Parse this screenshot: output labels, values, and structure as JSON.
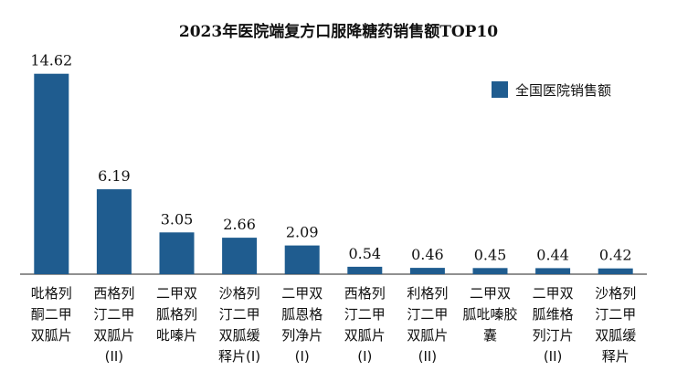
{
  "colors": {
    "bar": "#1f5c8f",
    "axis": "#222222"
  },
  "chart_data": {
    "type": "bar",
    "title": "2023年医院端复方口服降糖药销售额TOP10",
    "xlabel": "",
    "ylabel": "",
    "legend": {
      "position": "top-right"
    },
    "grid": false,
    "ylim": [
      0,
      16
    ],
    "categories": [
      [
        "吡格列",
        "酮二甲",
        "双胍片"
      ],
      [
        "西格列",
        "汀二甲",
        "双胍片",
        "(II)"
      ],
      [
        "二甲双",
        "胍格列",
        "吡嗪片"
      ],
      [
        "沙格列",
        "汀二甲",
        "双胍缓",
        "释片(I)"
      ],
      [
        "二甲双",
        "胍恩格",
        "列净片",
        "(I)"
      ],
      [
        "西格列",
        "汀二甲",
        "双胍片",
        "(I)"
      ],
      [
        "利格列",
        "汀二甲",
        "双胍片",
        "(II)"
      ],
      [
        "二甲双",
        "胍吡嗪胶",
        "囊"
      ],
      [
        "二甲双",
        "胍维格",
        "列汀片",
        "(II)"
      ],
      [
        "沙格列",
        "汀二甲",
        "双胍缓",
        "释片"
      ]
    ],
    "series": [
      {
        "name": "全国医院销售额",
        "values": [
          14.62,
          6.19,
          3.05,
          2.66,
          2.09,
          0.54,
          0.46,
          0.45,
          0.44,
          0.42
        ],
        "value_labels": [
          "14.62",
          "6.19",
          "3.05",
          "2.66",
          "2.09",
          "0.54",
          "0.46",
          "0.45",
          "0.44",
          "0.42"
        ]
      }
    ]
  }
}
